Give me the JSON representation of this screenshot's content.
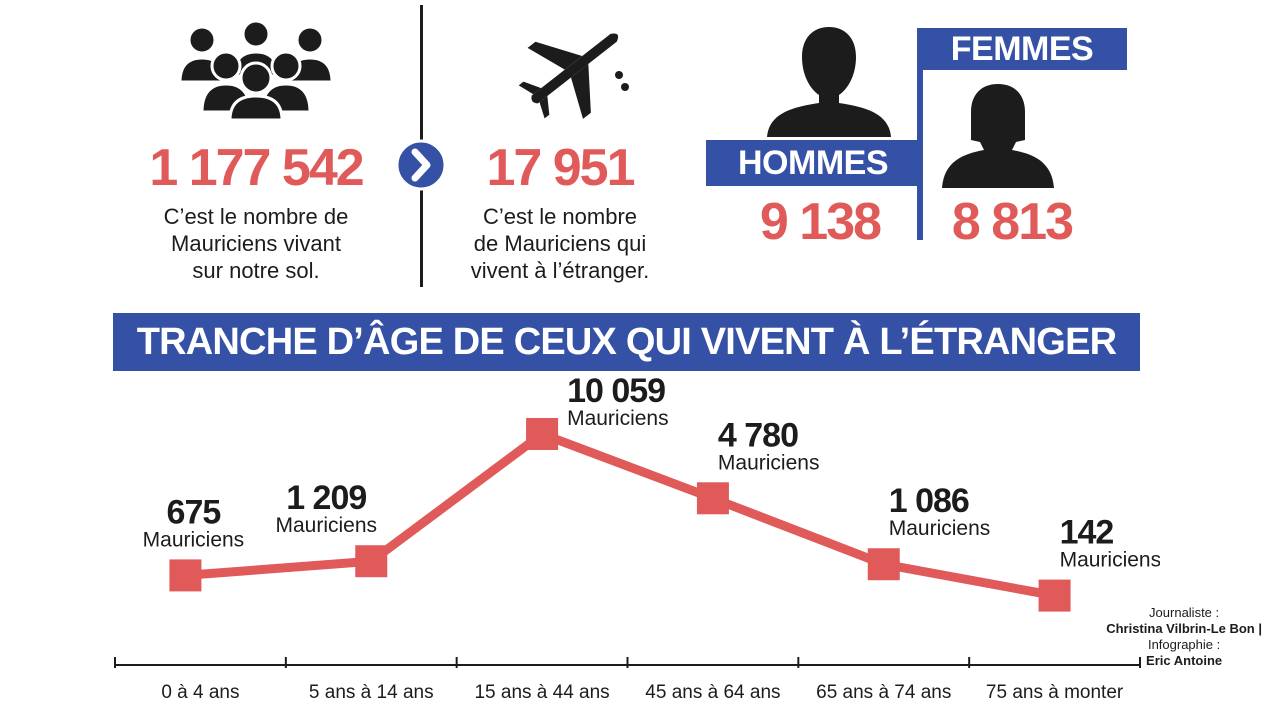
{
  "stats": {
    "residents_value": "1 177 542",
    "residents_desc": [
      "C’est le nombre de",
      "Mauriciens vivant",
      "sur notre sol."
    ],
    "abroad_value": "17 951",
    "abroad_desc": [
      "C’est le nombre",
      "de Mauriciens qui",
      "vivent à l’étranger."
    ]
  },
  "gender": {
    "men_label": "HOMMES",
    "men_value": "9 138",
    "women_label": "FEMMES",
    "women_value": "8 813"
  },
  "icons": [
    "crowd-icon",
    "chevron-right-icon",
    "airplane-icon",
    "man-silhouette-icon",
    "woman-silhouette-icon"
  ],
  "colors": {
    "accent_red": "#e05a5a",
    "brand_blue": "#3451a6",
    "text": "#1c1c1c"
  },
  "chart_data": {
    "type": "line",
    "title": "TRANCHE D’ÂGE DE CEUX QUI VIVENT À L’ÉTRANGER",
    "categories": [
      "0 à 4 ans",
      "5 ans à 14 ans",
      "15 ans à 44 ans",
      "45 ans à 64 ans",
      "65 ans à 74 ans",
      "75 ans à monter"
    ],
    "values": [
      675,
      1209,
      10059,
      4780,
      1086,
      142
    ],
    "value_labels": [
      "675",
      "1 209",
      "10 059",
      "4 780",
      "1 086",
      "142"
    ],
    "unit_label": "Mauriciens",
    "xlabel": "",
    "ylabel": "",
    "grid": false,
    "color": "#e05a5a"
  },
  "credits": {
    "journalist_label": "Journaliste :",
    "journalist_name": "Christina Vilbrin-Le Bon |",
    "infographic_label": "Infographie :",
    "infographic_name": "Eric Antoine"
  }
}
